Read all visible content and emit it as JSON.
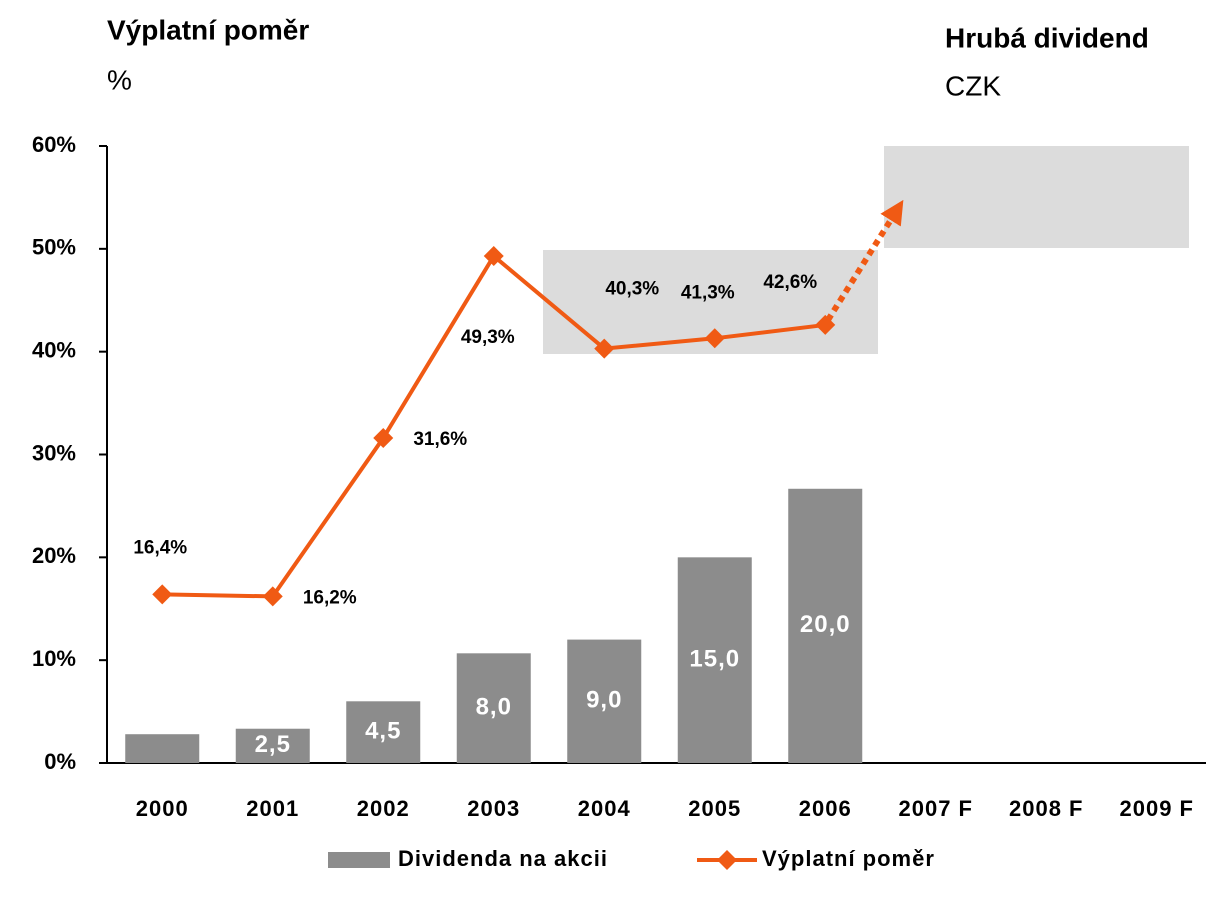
{
  "chart_data": {
    "type": "bar-line",
    "title": "Výplatní poměr",
    "subtitle": "%",
    "title2": "Hrubá dividend",
    "subtitle2": "CZK",
    "categories": [
      "2000",
      "2001",
      "2002",
      "2003",
      "2004",
      "2005",
      "2006",
      "2007 F",
      "2008 F",
      "2009 F"
    ],
    "series": [
      {
        "name": "Dividenda na akcii",
        "type": "bar",
        "axis": "y2",
        "color": "#8c8c8c",
        "values": [
          2.1,
          2.5,
          4.5,
          8.0,
          9.0,
          15.0,
          20.0,
          null,
          null,
          null
        ],
        "value_labels": [
          null,
          "2,5",
          "4,5",
          "8,0",
          "9,0",
          "15,0",
          "20,0",
          null,
          null,
          null
        ]
      },
      {
        "name": "Výplatní poměr",
        "type": "line",
        "color": "#f05a14",
        "values": [
          16.4,
          16.2,
          31.6,
          49.3,
          40.3,
          41.3,
          42.6,
          null,
          null,
          null
        ],
        "value_labels": [
          "16,4%",
          "16,2%",
          "31,6%",
          "49,3%",
          "40,3%",
          "41,3%",
          "42,6%",
          null,
          null,
          null
        ]
      }
    ],
    "ylim": [
      0,
      60
    ],
    "yticks": [
      {
        "value": 0,
        "label": "0%"
      },
      {
        "value": 10,
        "label": "10%"
      },
      {
        "value": 20,
        "label": "20%"
      },
      {
        "value": 30,
        "label": "30%"
      },
      {
        "value": 40,
        "label": "40%"
      },
      {
        "value": 50,
        "label": "50%"
      },
      {
        "value": 60,
        "label": "60%"
      }
    ],
    "y2lim": [
      0,
      45
    ],
    "legend": "bottom"
  }
}
